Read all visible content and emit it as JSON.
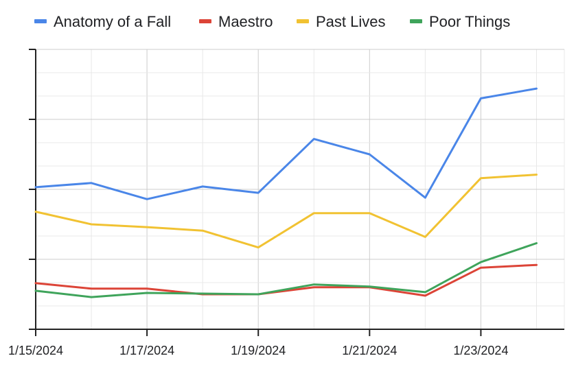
{
  "chart_data": {
    "type": "line",
    "x": [
      "1/15/2024",
      "1/16/2024",
      "1/17/2024",
      "1/18/2024",
      "1/19/2024",
      "1/20/2024",
      "1/21/2024",
      "1/22/2024",
      "1/23/2024",
      "1/24/2024"
    ],
    "x_tick_labels": [
      "1/15/2024",
      "1/17/2024",
      "1/19/2024",
      "1/21/2024",
      "1/23/2024"
    ],
    "series": [
      {
        "name": "Anatomy of a Fall",
        "color": "#4a86e8",
        "values": [
          2.03,
          2.09,
          1.86,
          2.04,
          1.95,
          2.72,
          2.5,
          1.88,
          3.3,
          3.44
        ]
      },
      {
        "name": "Maestro",
        "color": "#dc4437",
        "values": [
          0.66,
          0.58,
          0.58,
          0.5,
          0.5,
          0.6,
          0.6,
          0.48,
          0.88,
          0.92
        ]
      },
      {
        "name": "Past Lives",
        "color": "#f1c232",
        "values": [
          1.68,
          1.5,
          1.46,
          1.41,
          1.17,
          1.66,
          1.66,
          1.32,
          2.16,
          2.21
        ]
      },
      {
        "name": "Poor Things",
        "color": "#3fa45b",
        "values": [
          0.55,
          0.46,
          0.52,
          0.51,
          0.5,
          0.64,
          0.61,
          0.53,
          0.96,
          1.23
        ]
      }
    ],
    "ylim": [
      0,
      4
    ],
    "y_major_ticks": [
      0,
      1,
      2,
      3,
      4
    ],
    "grid": true,
    "legend_position": "top"
  }
}
